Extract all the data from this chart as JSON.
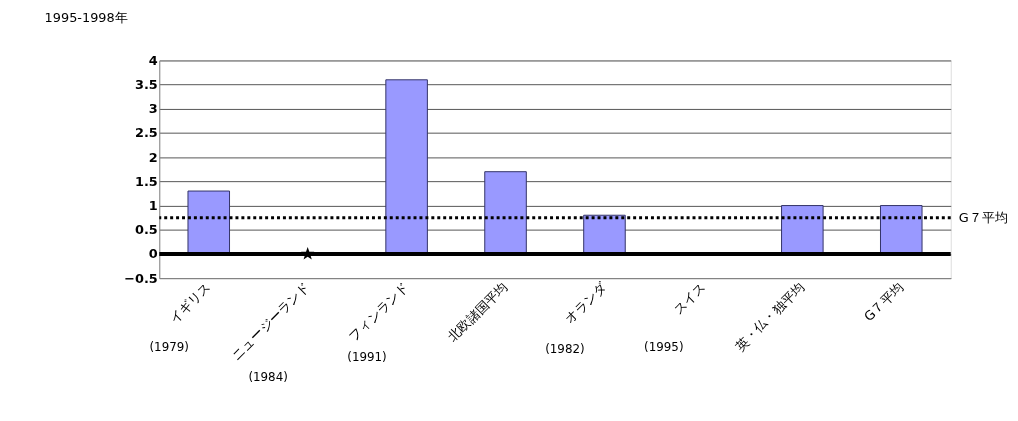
{
  "chart_data": {
    "type": "bar",
    "title": "1995-1998年",
    "categories": [
      "イギリス",
      "ニュージーランド",
      "フィンランド",
      "北欧諸国平均",
      "オランダ",
      "スイス",
      "英・仏・独平均",
      "G７平均"
    ],
    "series": [
      {
        "color": "#9999ff",
        "values": [
          1.3,
          null,
          3.6,
          1.7,
          0.8,
          null,
          1.0,
          1.0
        ]
      },
      {
        "type": "scatter",
        "color": "#000000",
        "marker": "star",
        "values": [
          null,
          0,
          null,
          null,
          null,
          null,
          null,
          null
        ]
      }
    ],
    "ylim": [
      -0.5,
      4
    ],
    "yticks": [
      -0.5,
      0,
      0.5,
      1,
      1.5,
      2,
      2.5,
      3,
      3.5,
      4
    ],
    "grid": "y",
    "ref_lines": [
      {
        "axis": "y",
        "value": 0,
        "color": "#000000",
        "line_style": "solid"
      },
      {
        "axis": "y",
        "value": 0.75,
        "label": "G７平均",
        "color": "#000000",
        "line_style": "dotted"
      }
    ],
    "annotations": [
      "(1979)",
      "(1984)",
      "(1991)",
      "(1982)",
      "(1995)"
    ]
  }
}
